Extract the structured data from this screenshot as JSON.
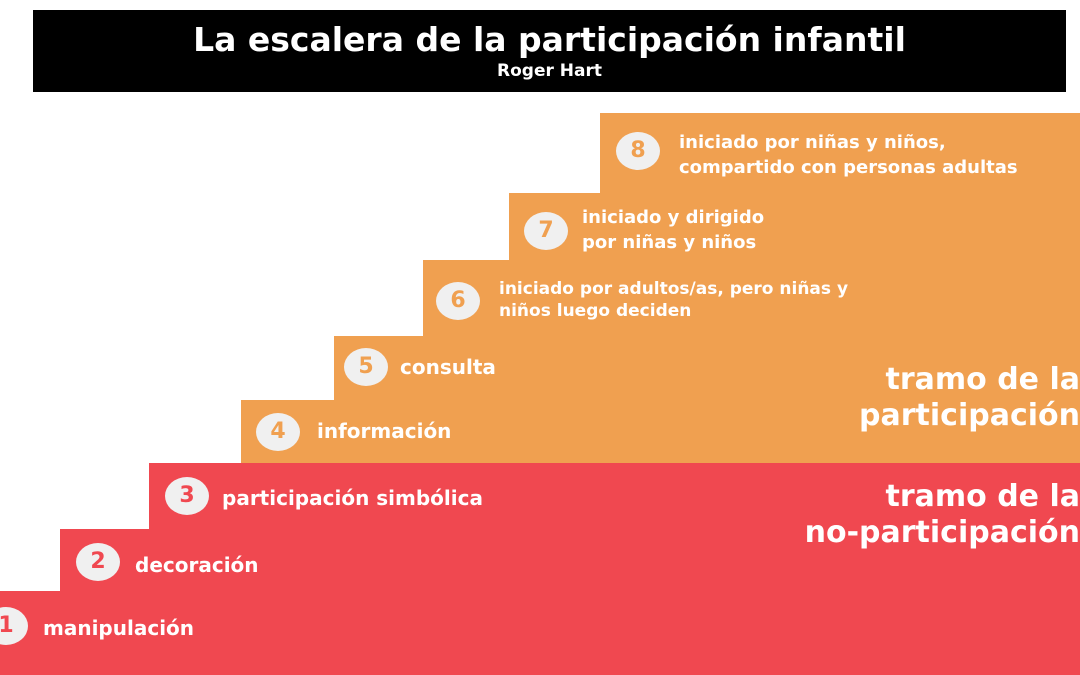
{
  "header": {
    "title": "La escalera de la participación infantil",
    "subtitle": "Roger Hart"
  },
  "steps": [
    {
      "number": "1",
      "label": "manipulación"
    },
    {
      "number": "2",
      "label": "decoración"
    },
    {
      "number": "3",
      "label": "participación simbólica"
    },
    {
      "number": "4",
      "label": "información"
    },
    {
      "number": "5",
      "label": "consulta"
    },
    {
      "number": "6",
      "label": "iniciado por adultos/as, pero niñas y\nniños luego deciden"
    },
    {
      "number": "7",
      "label": "iniciado y dirigido\npor niñas y niños"
    },
    {
      "number": "8",
      "label": "iniciado por niñas y niños,\ncompartido con personas adultas"
    }
  ],
  "sections": {
    "participation": "tramo de la\nparticipación",
    "non_participation": "tramo de la\nno-participación"
  },
  "colors": {
    "participation": "#f0a050",
    "non_participation": "#f04850",
    "header_bg": "#000000",
    "badge_bg": "#f0f0f0"
  }
}
